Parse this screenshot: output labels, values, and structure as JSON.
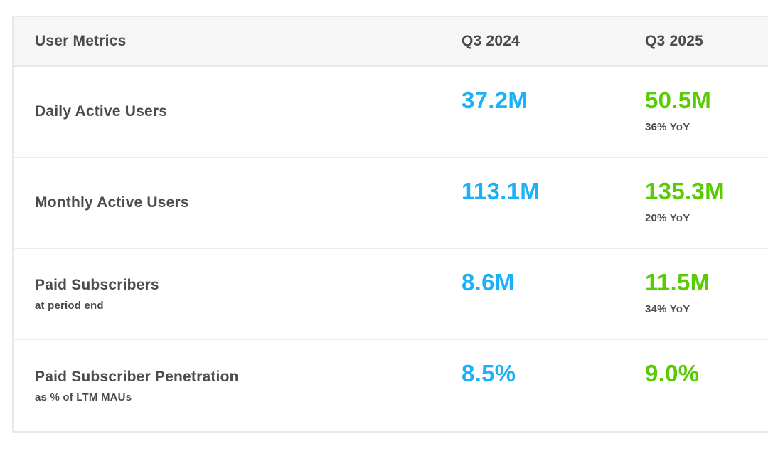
{
  "table": {
    "header": {
      "metric_col": "User Metrics",
      "col_2024": "Q3 2024",
      "col_2025": "Q3 2025"
    },
    "rows": [
      {
        "label": "Daily Active Users",
        "sublabel": "",
        "q3_2024": "37.2M",
        "q3_2025": "50.5M",
        "yoy": "36% YoY"
      },
      {
        "label": "Monthly Active Users",
        "sublabel": "",
        "q3_2024": "113.1M",
        "q3_2025": "135.3M",
        "yoy": "20% YoY"
      },
      {
        "label": "Paid Subscribers",
        "sublabel": "at period end",
        "q3_2024": "8.6M",
        "q3_2025": "11.5M",
        "yoy": "34% YoY"
      },
      {
        "label": "Paid Subscriber Penetration",
        "sublabel": "as % of LTM MAUs",
        "q3_2024": "8.5%",
        "q3_2025": "9.0%",
        "yoy": ""
      }
    ],
    "colors": {
      "q3_2024_value": "#1cb0f6",
      "q3_2025_value": "#58cc02",
      "text": "#4b4b4b",
      "header_background": "#f6f6f6",
      "border": "#e8e8e8"
    }
  },
  "chart_data": {
    "type": "table",
    "title": "User Metrics",
    "columns": [
      "User Metrics",
      "Q3 2024",
      "Q3 2025"
    ],
    "rows": [
      {
        "metric": "Daily Active Users",
        "note": "",
        "q3_2024": "37.2M",
        "q3_2025": "50.5M",
        "yoy_growth": "36% YoY"
      },
      {
        "metric": "Monthly Active Users",
        "note": "",
        "q3_2024": "113.1M",
        "q3_2025": "135.3M",
        "yoy_growth": "20% YoY"
      },
      {
        "metric": "Paid Subscribers",
        "note": "at period end",
        "q3_2024": "8.6M",
        "q3_2025": "11.5M",
        "yoy_growth": "34% YoY"
      },
      {
        "metric": "Paid Subscriber Penetration",
        "note": "as % of LTM MAUs",
        "q3_2024": "8.5%",
        "q3_2025": "9.0%",
        "yoy_growth": ""
      }
    ],
    "numeric_values": {
      "daily_active_users_millions": {
        "q3_2024": 37.2,
        "q3_2025": 50.5,
        "yoy_pct": 36
      },
      "monthly_active_users_millions": {
        "q3_2024": 113.1,
        "q3_2025": 135.3,
        "yoy_pct": 20
      },
      "paid_subscribers_millions": {
        "q3_2024": 8.6,
        "q3_2025": 11.5,
        "yoy_pct": 34
      },
      "paid_subscriber_penetration_pct": {
        "q3_2024": 8.5,
        "q3_2025": 9.0
      }
    }
  }
}
